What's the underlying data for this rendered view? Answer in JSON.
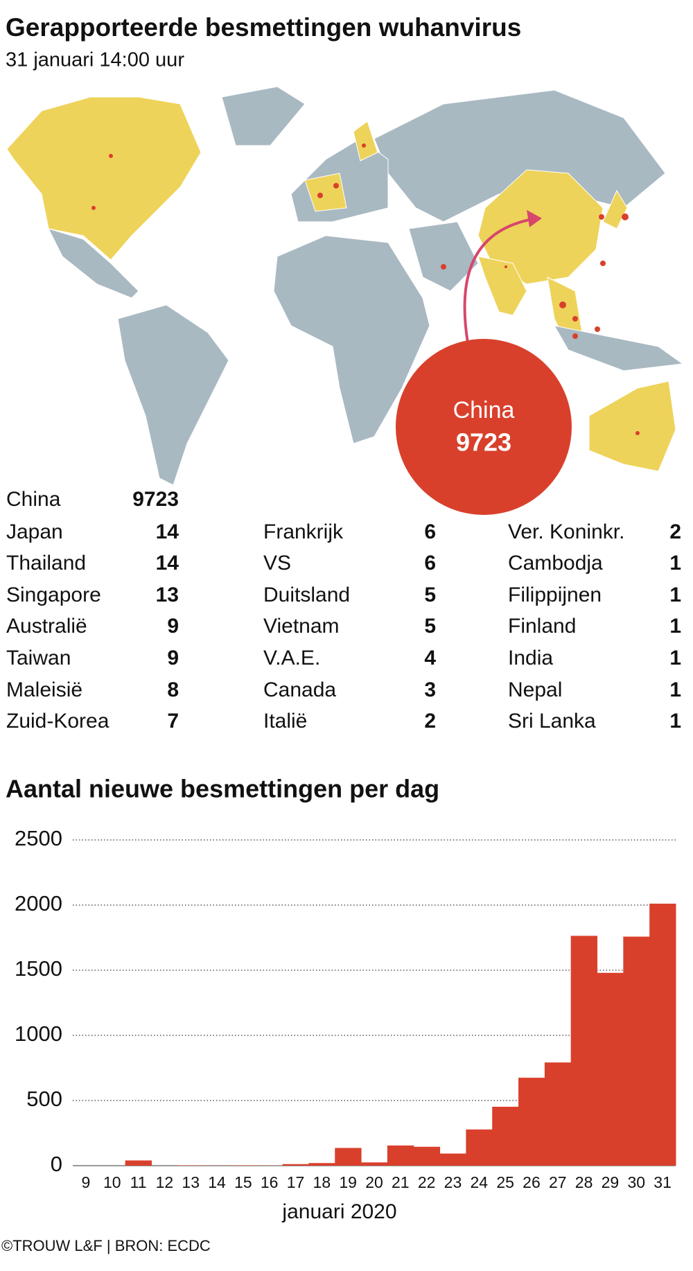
{
  "header": {
    "title": "Gerapporteerde besmettingen wuhanvirus",
    "subtitle": "31 januari 14:00 uur"
  },
  "map": {
    "callout": {
      "country": "China",
      "value": 9723
    }
  },
  "table": {
    "columns": [
      [
        [
          "China",
          9723
        ],
        [
          "Japan",
          14
        ],
        [
          "Thailand",
          14
        ],
        [
          "Singapore",
          13
        ],
        [
          "Australië",
          9
        ],
        [
          "Taiwan",
          9
        ],
        [
          "Maleisië",
          8
        ],
        [
          "Zuid-Korea",
          7
        ]
      ],
      [
        [
          "Frankrijk",
          6
        ],
        [
          "VS",
          6
        ],
        [
          "Duitsland",
          5
        ],
        [
          "Vietnam",
          5
        ],
        [
          "V.A.E.",
          4
        ],
        [
          "Canada",
          3
        ],
        [
          "Italië",
          2
        ]
      ],
      [
        [
          "Ver. Koninkr.",
          2
        ],
        [
          "Cambodja",
          1
        ],
        [
          "Filippijnen",
          1
        ],
        [
          "Finland",
          1
        ],
        [
          "India",
          1
        ],
        [
          "Nepal",
          1
        ],
        [
          "Sri Lanka",
          1
        ]
      ]
    ]
  },
  "chart_data": {
    "type": "bar",
    "title": "Aantal nieuwe besmettingen per dag",
    "x_label": "januari 2020",
    "categories": [
      "9",
      "10",
      "11",
      "12",
      "13",
      "14",
      "15",
      "16",
      "17",
      "18",
      "19",
      "20",
      "21",
      "22",
      "23",
      "24",
      "25",
      "26",
      "27",
      "28",
      "29",
      "30",
      "31"
    ],
    "values": [
      0,
      0,
      40,
      0,
      3,
      1,
      3,
      2,
      12,
      20,
      136,
      25,
      155,
      145,
      93,
      278,
      452,
      675,
      792,
      1764,
      1480,
      1758,
      2011
    ],
    "color": "#d9402c",
    "ylim": [
      0,
      2500
    ],
    "yticks": [
      0,
      500,
      1000,
      1500,
      2000,
      2500
    ],
    "grid": true
  },
  "footer": {
    "source": "©TROUW L&F | BRON: ECDC"
  }
}
